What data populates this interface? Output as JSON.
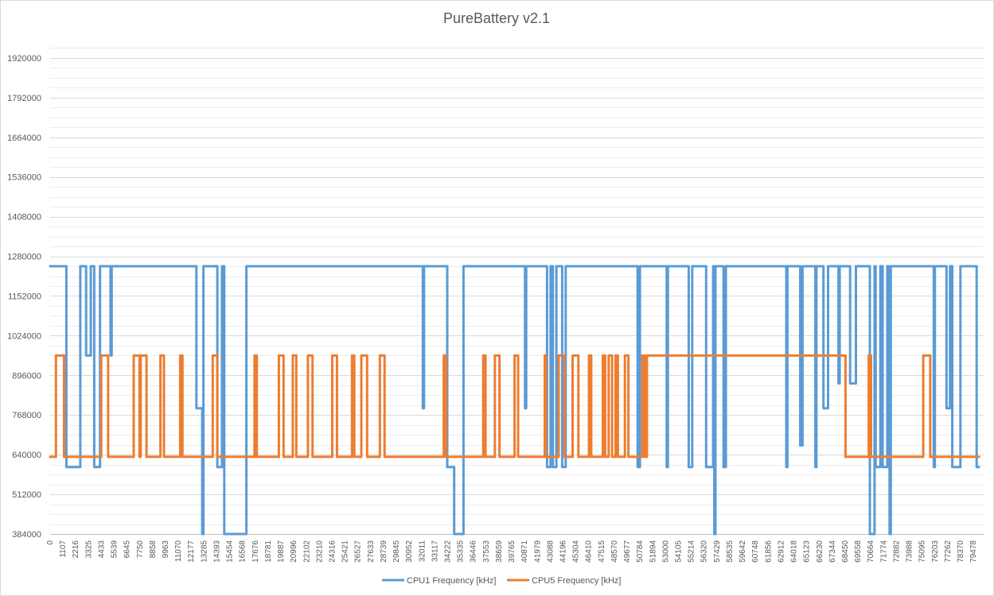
{
  "chart_data": {
    "type": "line",
    "title": "PureBattery v2.1",
    "xlabel": "",
    "ylabel": "",
    "ylim": [
      384000,
      1984000
    ],
    "xlim": [
      0,
      80400
    ],
    "grid": true,
    "legend_position": "bottom",
    "y_ticks": [
      384000,
      512000,
      640000,
      768000,
      896000,
      1024000,
      1152000,
      1280000,
      1408000,
      1536000,
      1664000,
      1792000,
      1920000
    ],
    "y_tick_labels": [
      "384000",
      "512000",
      "640000",
      "768000",
      "896000",
      "1024000",
      "1152000",
      "1280000",
      "1408000",
      "1536000",
      "1664000",
      "1792000",
      "1920000"
    ],
    "x_tick_labels": [
      "0",
      "1107",
      "2216",
      "3325",
      "4433",
      "5539",
      "6645",
      "7750",
      "8858",
      "9963",
      "11070",
      "12177",
      "13285",
      "14393",
      "15454",
      "16568",
      "17676",
      "18781",
      "19887",
      "20996",
      "22102",
      "23210",
      "24316",
      "25421",
      "26527",
      "27633",
      "28739",
      "29845",
      "30952",
      "32011",
      "33117",
      "34222",
      "35335",
      "36446",
      "37553",
      "38659",
      "39765",
      "40871",
      "41979",
      "43088",
      "44196",
      "45304",
      "46410",
      "47515",
      "48570",
      "49677",
      "50784",
      "51894",
      "53000",
      "54105",
      "55214",
      "56320",
      "57429",
      "58535",
      "59642",
      "60748",
      "61856",
      "62912",
      "64018",
      "65123",
      "66230",
      "67344",
      "68450",
      "69558",
      "70664",
      "71774",
      "72882",
      "73988",
      "75095",
      "76203",
      "77262",
      "78370",
      "79478"
    ],
    "series": [
      {
        "name": "CPU1 Frequency [kHz]",
        "color": "#5B9BD5",
        "points": [
          [
            0,
            1248000
          ],
          [
            1400,
            1248000
          ],
          [
            1400,
            600000
          ],
          [
            2600,
            600000
          ],
          [
            2600,
            1248000
          ],
          [
            3100,
            1248000
          ],
          [
            3100,
            960000
          ],
          [
            3500,
            960000
          ],
          [
            3500,
            1248000
          ],
          [
            3800,
            1248000
          ],
          [
            3800,
            600000
          ],
          [
            4300,
            600000
          ],
          [
            4300,
            1248000
          ],
          [
            5200,
            1248000
          ],
          [
            5200,
            960000
          ],
          [
            5300,
            960000
          ],
          [
            5300,
            1248000
          ],
          [
            12600,
            1248000
          ],
          [
            12600,
            790000
          ],
          [
            13100,
            790000
          ],
          [
            13100,
            384000
          ],
          [
            13200,
            384000
          ],
          [
            13200,
            1248000
          ],
          [
            14400,
            1248000
          ],
          [
            14400,
            600000
          ],
          [
            14800,
            600000
          ],
          [
            14800,
            1248000
          ],
          [
            15000,
            1248000
          ],
          [
            15000,
            384000
          ],
          [
            16900,
            384000
          ],
          [
            16900,
            1248000
          ],
          [
            32100,
            1248000
          ],
          [
            32100,
            790000
          ],
          [
            32200,
            790000
          ],
          [
            32200,
            1248000
          ],
          [
            34200,
            1248000
          ],
          [
            34200,
            600000
          ],
          [
            34800,
            600000
          ],
          [
            34800,
            384000
          ],
          [
            35600,
            384000
          ],
          [
            35600,
            1248000
          ],
          [
            40900,
            1248000
          ],
          [
            40900,
            790000
          ],
          [
            41000,
            790000
          ],
          [
            41000,
            1248000
          ],
          [
            42800,
            1248000
          ],
          [
            42800,
            600000
          ],
          [
            43100,
            600000
          ],
          [
            43100,
            1248000
          ],
          [
            43300,
            1248000
          ],
          [
            43300,
            600000
          ],
          [
            43600,
            600000
          ],
          [
            43600,
            1248000
          ],
          [
            44100,
            1248000
          ],
          [
            44100,
            600000
          ],
          [
            44400,
            600000
          ],
          [
            44400,
            1248000
          ],
          [
            50600,
            1248000
          ],
          [
            50600,
            600000
          ],
          [
            50800,
            600000
          ],
          [
            50800,
            1248000
          ],
          [
            53100,
            1248000
          ],
          [
            53100,
            600000
          ],
          [
            53200,
            600000
          ],
          [
            53200,
            1248000
          ],
          [
            55000,
            1248000
          ],
          [
            55000,
            600000
          ],
          [
            55300,
            600000
          ],
          [
            55300,
            1248000
          ],
          [
            56500,
            1248000
          ],
          [
            56500,
            600000
          ],
          [
            57100,
            600000
          ],
          [
            57100,
            1248000
          ],
          [
            57200,
            1248000
          ],
          [
            57200,
            384000
          ],
          [
            57300,
            384000
          ],
          [
            57300,
            1248000
          ],
          [
            58000,
            1248000
          ],
          [
            58000,
            600000
          ],
          [
            58200,
            600000
          ],
          [
            58200,
            1248000
          ],
          [
            63400,
            1248000
          ],
          [
            63400,
            600000
          ],
          [
            63500,
            600000
          ],
          [
            63500,
            1248000
          ],
          [
            64600,
            1248000
          ],
          [
            64600,
            670000
          ],
          [
            64800,
            670000
          ],
          [
            64800,
            1248000
          ],
          [
            65900,
            1248000
          ],
          [
            65900,
            600000
          ],
          [
            66000,
            600000
          ],
          [
            66000,
            1248000
          ],
          [
            66600,
            1248000
          ],
          [
            66600,
            790000
          ],
          [
            67000,
            790000
          ],
          [
            67000,
            1248000
          ],
          [
            67900,
            1248000
          ],
          [
            67900,
            870000
          ],
          [
            68000,
            870000
          ],
          [
            68000,
            1248000
          ],
          [
            68900,
            1248000
          ],
          [
            68900,
            870000
          ],
          [
            69400,
            870000
          ],
          [
            69400,
            1248000
          ],
          [
            70600,
            1248000
          ],
          [
            70600,
            384000
          ],
          [
            71000,
            384000
          ],
          [
            71000,
            1248000
          ],
          [
            71100,
            1248000
          ],
          [
            71100,
            600000
          ],
          [
            71500,
            600000
          ],
          [
            71500,
            1248000
          ],
          [
            71700,
            1248000
          ],
          [
            71700,
            600000
          ],
          [
            72100,
            600000
          ],
          [
            72100,
            1248000
          ],
          [
            72300,
            1248000
          ],
          [
            72300,
            384000
          ],
          [
            72400,
            384000
          ],
          [
            72400,
            1248000
          ],
          [
            76100,
            1248000
          ],
          [
            76100,
            600000
          ],
          [
            76200,
            600000
          ],
          [
            76200,
            1248000
          ],
          [
            77200,
            1248000
          ],
          [
            77200,
            790000
          ],
          [
            77500,
            790000
          ],
          [
            77500,
            1248000
          ],
          [
            77700,
            1248000
          ],
          [
            77700,
            600000
          ],
          [
            78400,
            600000
          ],
          [
            78400,
            1248000
          ],
          [
            79800,
            1248000
          ],
          [
            79800,
            600000
          ],
          [
            80000,
            600000
          ]
        ]
      },
      {
        "name": "CPU5 Frequency [kHz]",
        "color": "#ED7D31",
        "points": [
          [
            0,
            633000
          ],
          [
            500,
            633000
          ],
          [
            500,
            960000
          ],
          [
            1200,
            960000
          ],
          [
            1200,
            633000
          ],
          [
            4400,
            633000
          ],
          [
            4400,
            960000
          ],
          [
            5000,
            960000
          ],
          [
            5000,
            633000
          ],
          [
            7200,
            633000
          ],
          [
            7200,
            960000
          ],
          [
            7700,
            960000
          ],
          [
            7700,
            633000
          ],
          [
            7800,
            633000
          ],
          [
            7800,
            960000
          ],
          [
            8300,
            960000
          ],
          [
            8300,
            633000
          ],
          [
            9500,
            633000
          ],
          [
            9500,
            960000
          ],
          [
            9800,
            960000
          ],
          [
            9800,
            633000
          ],
          [
            11200,
            633000
          ],
          [
            11200,
            960000
          ],
          [
            11400,
            960000
          ],
          [
            11400,
            633000
          ],
          [
            14000,
            633000
          ],
          [
            14000,
            960000
          ],
          [
            14400,
            960000
          ],
          [
            14400,
            633000
          ],
          [
            17600,
            633000
          ],
          [
            17600,
            960000
          ],
          [
            17800,
            960000
          ],
          [
            17800,
            633000
          ],
          [
            19700,
            633000
          ],
          [
            19700,
            960000
          ],
          [
            20100,
            960000
          ],
          [
            20100,
            633000
          ],
          [
            20900,
            633000
          ],
          [
            20900,
            960000
          ],
          [
            21200,
            960000
          ],
          [
            21200,
            633000
          ],
          [
            22200,
            633000
          ],
          [
            22200,
            960000
          ],
          [
            22600,
            960000
          ],
          [
            22600,
            633000
          ],
          [
            24300,
            633000
          ],
          [
            24300,
            960000
          ],
          [
            24700,
            960000
          ],
          [
            24700,
            633000
          ],
          [
            26000,
            633000
          ],
          [
            26000,
            960000
          ],
          [
            26200,
            960000
          ],
          [
            26200,
            633000
          ],
          [
            26800,
            633000
          ],
          [
            26800,
            960000
          ],
          [
            27300,
            960000
          ],
          [
            27300,
            633000
          ],
          [
            28400,
            633000
          ],
          [
            28400,
            960000
          ],
          [
            28800,
            960000
          ],
          [
            28800,
            633000
          ],
          [
            33900,
            633000
          ],
          [
            33900,
            960000
          ],
          [
            34100,
            960000
          ],
          [
            34100,
            633000
          ],
          [
            37300,
            633000
          ],
          [
            37300,
            960000
          ],
          [
            37500,
            960000
          ],
          [
            37500,
            633000
          ],
          [
            38300,
            633000
          ],
          [
            38300,
            960000
          ],
          [
            38700,
            960000
          ],
          [
            38700,
            633000
          ],
          [
            40000,
            633000
          ],
          [
            40000,
            960000
          ],
          [
            40300,
            960000
          ],
          [
            40300,
            633000
          ],
          [
            42600,
            633000
          ],
          [
            42600,
            960000
          ],
          [
            42700,
            960000
          ],
          [
            42700,
            633000
          ],
          [
            43800,
            633000
          ],
          [
            43800,
            960000
          ],
          [
            44300,
            960000
          ],
          [
            44300,
            633000
          ],
          [
            45000,
            633000
          ],
          [
            45000,
            960000
          ],
          [
            45500,
            960000
          ],
          [
            45500,
            633000
          ],
          [
            46400,
            633000
          ],
          [
            46400,
            960000
          ],
          [
            46600,
            960000
          ],
          [
            46600,
            633000
          ],
          [
            47600,
            633000
          ],
          [
            47600,
            960000
          ],
          [
            47800,
            960000
          ],
          [
            47800,
            633000
          ],
          [
            48100,
            633000
          ],
          [
            48100,
            960000
          ],
          [
            48400,
            960000
          ],
          [
            48400,
            633000
          ],
          [
            48700,
            633000
          ],
          [
            48700,
            960000
          ],
          [
            48900,
            960000
          ],
          [
            48900,
            633000
          ],
          [
            49500,
            633000
          ],
          [
            49500,
            960000
          ],
          [
            49800,
            960000
          ],
          [
            49800,
            633000
          ],
          [
            51000,
            633000
          ],
          [
            51000,
            960000
          ],
          [
            51200,
            960000
          ],
          [
            51200,
            633000
          ],
          [
            51400,
            633000
          ],
          [
            51400,
            960000
          ],
          [
            68500,
            960000
          ],
          [
            68500,
            633000
          ],
          [
            70500,
            633000
          ],
          [
            70500,
            960000
          ],
          [
            70700,
            960000
          ],
          [
            70700,
            633000
          ],
          [
            75200,
            633000
          ],
          [
            75200,
            960000
          ],
          [
            75800,
            960000
          ],
          [
            75800,
            633000
          ],
          [
            80000,
            633000
          ]
        ]
      }
    ]
  }
}
